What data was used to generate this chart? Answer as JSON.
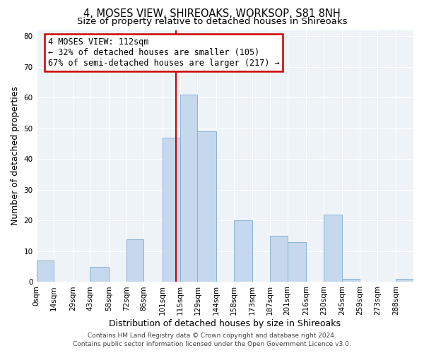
{
  "title": "4, MOSES VIEW, SHIREOAKS, WORKSOP, S81 8NH",
  "subtitle": "Size of property relative to detached houses in Shireoaks",
  "xlabel": "Distribution of detached houses by size in Shireoaks",
  "ylabel": "Number of detached properties",
  "bin_labels": [
    "0sqm",
    "14sqm",
    "29sqm",
    "43sqm",
    "58sqm",
    "72sqm",
    "86sqm",
    "101sqm",
    "115sqm",
    "129sqm",
    "144sqm",
    "158sqm",
    "173sqm",
    "187sqm",
    "201sqm",
    "216sqm",
    "230sqm",
    "245sqm",
    "259sqm",
    "273sqm",
    "288sqm"
  ],
  "bin_edges": [
    0,
    14,
    29,
    43,
    58,
    72,
    86,
    101,
    115,
    129,
    144,
    158,
    173,
    187,
    201,
    216,
    230,
    245,
    259,
    273,
    288,
    302
  ],
  "bar_heights": [
    7,
    0,
    0,
    5,
    0,
    14,
    0,
    47,
    61,
    49,
    0,
    20,
    0,
    15,
    13,
    0,
    22,
    1,
    0,
    0,
    1
  ],
  "bar_color": "#c5d8ed",
  "bar_edgecolor": "#8ab4d4",
  "vline_x": 112,
  "vline_color": "#cc0000",
  "ylim": [
    0,
    82
  ],
  "yticks": [
    0,
    10,
    20,
    30,
    40,
    50,
    60,
    70,
    80
  ],
  "annotation_title": "4 MOSES VIEW: 112sqm",
  "annotation_line1": "← 32% of detached houses are smaller (105)",
  "annotation_line2": "67% of semi-detached houses are larger (217) →",
  "annotation_box_color": "#ffffff",
  "annotation_box_edgecolor": "#cc0000",
  "footer1": "Contains HM Land Registry data © Crown copyright and database right 2024.",
  "footer2": "Contains public sector information licensed under the Open Government Licence v3.0.",
  "title_fontsize": 10.5,
  "subtitle_fontsize": 9.5,
  "xlabel_fontsize": 9,
  "ylabel_fontsize": 9,
  "tick_fontsize": 7.5,
  "annotation_fontsize": 8.5,
  "footer_fontsize": 6.5,
  "plot_bg_color": "#eef3f8"
}
